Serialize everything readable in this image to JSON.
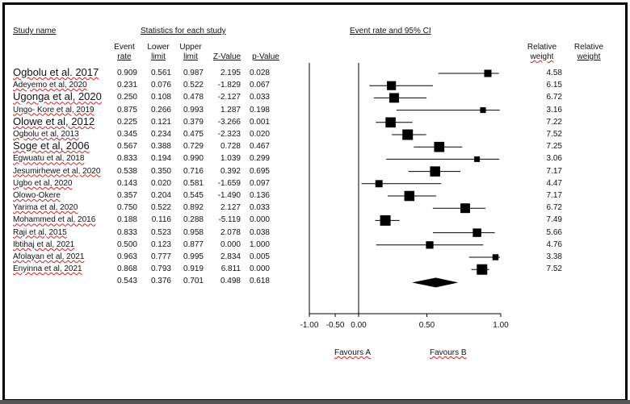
{
  "chart_data": {
    "type": "forest",
    "title": "Event rate and 95% CI",
    "headers": {
      "study": "Study name",
      "stats_group": "Statistics for each study",
      "event_rate": [
        "Event",
        "rate"
      ],
      "lower": [
        "Lower",
        "limit"
      ],
      "upper": [
        "Upper",
        "limit"
      ],
      "z": "Z-Value",
      "p": "p-Value",
      "weight1": [
        "Relative",
        "weight"
      ],
      "weight2": [
        "Relative",
        "weight"
      ]
    },
    "studies": [
      {
        "name": "Ogbolu et al. 2017",
        "rate": "0.909",
        "lower": "0.561",
        "upper": "0.987",
        "z": "2.195",
        "p": "0.028",
        "weight": "4.58"
      },
      {
        "name": "Adeyemo  et al, 2020",
        "rate": "0.231",
        "lower": "0.076",
        "upper": "0.522",
        "z": "-1.829",
        "p": "0.067",
        "weight": "6.15"
      },
      {
        "name": "Ugonga et al, 2020",
        "rate": "0.250",
        "lower": "0.108",
        "upper": "0.478",
        "z": "-2.127",
        "p": "0.033",
        "weight": "6.72"
      },
      {
        "name": "Ungo- Kore et al, 2019",
        "rate": "0.875",
        "lower": "0.266",
        "upper": "0.993",
        "z": "1.287",
        "p": "0.198",
        "weight": "3.16"
      },
      {
        "name": "Olowe et al, 2012",
        "rate": "0.225",
        "lower": "0.121",
        "upper": "0.379",
        "z": "-3.266",
        "p": "0.001",
        "weight": "7.22"
      },
      {
        "name": "Ogbolu et al, 2013",
        "rate": "0.345",
        "lower": "0.234",
        "upper": "0.475",
        "z": "-2.323",
        "p": "0.020",
        "weight": "7.52"
      },
      {
        "name": "Soge et al, 2006",
        "rate": "0.567",
        "lower": "0.388",
        "upper": "0.729",
        "z": "0.728",
        "p": "0.467",
        "weight": "7.25"
      },
      {
        "name": "Egwuatu et al, 2018",
        "rate": "0.833",
        "lower": "0.194",
        "upper": "0.990",
        "z": "1.039",
        "p": "0.299",
        "weight": "3.06"
      },
      {
        "name": "Jesumirhewe  et al, 2020",
        "rate": "0.538",
        "lower": "0.350",
        "upper": "0.716",
        "z": "0.392",
        "p": "0.695",
        "weight": "7.17"
      },
      {
        "name": "Ugbo et al, 2020",
        "rate": "0.143",
        "lower": "0.020",
        "upper": "0.581",
        "z": "-1.659",
        "p": "0.097",
        "weight": "4.47"
      },
      {
        "name": "Olowo-Okere",
        "rate": "0.357",
        "lower": "0.204",
        "upper": "0.545",
        "z": "-1.490",
        "p": "0.136",
        "weight": "7.17"
      },
      {
        "name": "Yarima et al, 2020",
        "rate": "0.750",
        "lower": "0.522",
        "upper": "0.892",
        "z": "2.127",
        "p": "0.033",
        "weight": "6.72"
      },
      {
        "name": "Mohammed  et al, 2016",
        "rate": "0.188",
        "lower": "0.116",
        "upper": "0.288",
        "z": "-5.119",
        "p": "0.000",
        "weight": "7.49"
      },
      {
        "name": "Raji et al, 2015",
        "rate": "0.833",
        "lower": "0.523",
        "upper": "0.958",
        "z": "2.078",
        "p": "0.038",
        "weight": "5.66"
      },
      {
        "name": "Ibtihaj et al, 2021",
        "rate": "0.500",
        "lower": "0.123",
        "upper": "0.877",
        "z": "0.000",
        "p": "1.000",
        "weight": "4.76"
      },
      {
        "name": "Afolayan  et al, 2021",
        "rate": "0.963",
        "lower": "0.777",
        "upper": "0.995",
        "z": "2.834",
        "p": "0.005",
        "weight": "3.38"
      },
      {
        "name": "Enyinna  et al, 2021",
        "rate": "0.868",
        "lower": "0.793",
        "upper": "0.919",
        "z": "6.811",
        "p": "0.000",
        "weight": "7.52"
      }
    ],
    "summary": {
      "rate": "0.543",
      "lower": "0.376",
      "upper": "0.701",
      "z": "0.498",
      "p": "0.618"
    },
    "x_ticks": [
      "-1.00",
      "-0.50",
      "0.00",
      "0.50",
      "1.00"
    ],
    "xlim": [
      -1,
      1
    ],
    "favours_left": "Favours A",
    "favours_right": "Favours B",
    "marker_color": "#000000"
  }
}
